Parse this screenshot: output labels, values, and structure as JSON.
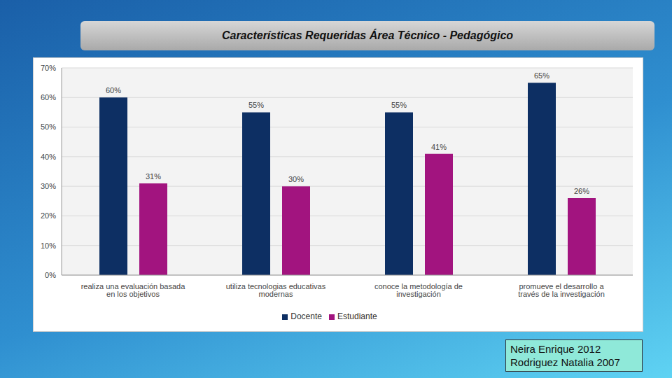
{
  "chart_data": {
    "type": "bar",
    "title": "Características Requeridas Área Técnico - Pedagógico",
    "categories": [
      "realiza una evaluación basada en los objetivos",
      "utiliza tecnologias educativas modernas",
      "conoce la metodología de investigación",
      "promueve el desarrollo a través de la investigación"
    ],
    "series": [
      {
        "name": "Docente",
        "color": "#0d2f63",
        "values": [
          60,
          55,
          55,
          65
        ],
        "value_labels": [
          "60%",
          "55%",
          "55%",
          "65%"
        ]
      },
      {
        "name": "Estudiante",
        "color": "#a2147f",
        "values": [
          31,
          30,
          41,
          26
        ],
        "value_labels": [
          "31%",
          "30%",
          "41%",
          "26%"
        ]
      }
    ],
    "ylim": [
      0,
      70
    ],
    "yticks": [
      {
        "value": 0,
        "label": "0%"
      },
      {
        "value": 10,
        "label": "10%"
      },
      {
        "value": 20,
        "label": "20%"
      },
      {
        "value": 30,
        "label": "30%"
      },
      {
        "value": 40,
        "label": "40%"
      },
      {
        "value": 50,
        "label": "50%"
      },
      {
        "value": 60,
        "label": "60%"
      },
      {
        "value": 70,
        "label": "70%"
      }
    ],
    "grid": true,
    "legend": "bottom",
    "data_labels": true,
    "annotations": [
      "Neira Enrique 2012",
      "Rodriguez Natalia 2007"
    ]
  }
}
